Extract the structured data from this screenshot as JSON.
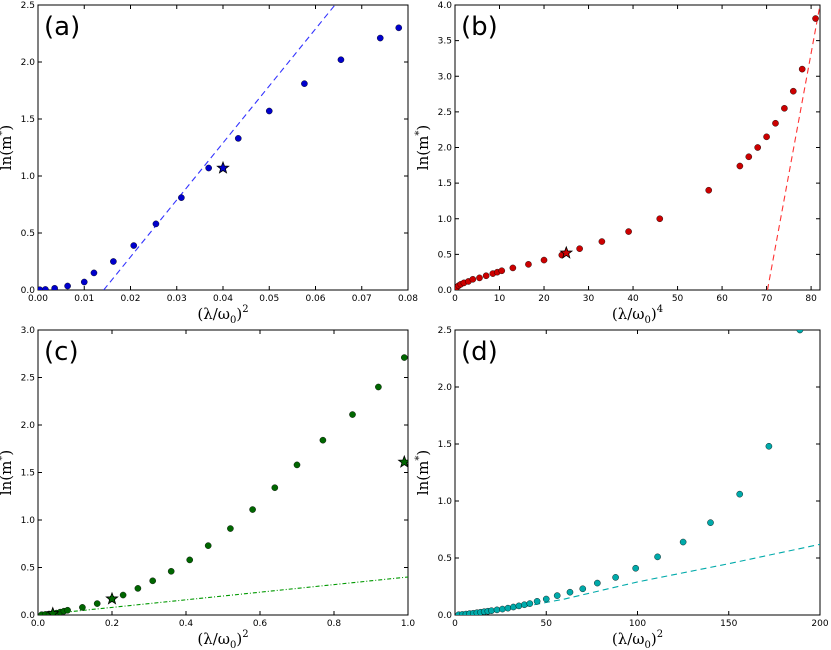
{
  "chart_data": [
    {
      "type": "scatter",
      "panel_label": "(a)",
      "xlabel": "(λ/ω0)^2",
      "ylabel": "ln(m*)",
      "xlim": [
        0,
        0.08
      ],
      "ylim": [
        0,
        2.5
      ],
      "xticks": [
        "0.00",
        "0.01",
        "0.02",
        "0.03",
        "0.04",
        "0.05",
        "0.06",
        "0.07",
        "0.08"
      ],
      "yticks": [
        "0.0",
        "0.5",
        "1.0",
        "1.5",
        "2.0",
        "2.5"
      ],
      "marker_color": "#0000cc",
      "line_color": "#3333ff",
      "series": [
        {
          "kind": "points",
          "x": [
            0.0004,
            0.0016,
            0.0036,
            0.0064,
            0.01,
            0.0121,
            0.0163,
            0.0207,
            0.0255,
            0.031,
            0.0369,
            0.0433,
            0.05,
            0.0576,
            0.0655,
            0.074,
            0.078
          ],
          "y": [
            0.002,
            0.005,
            0.015,
            0.035,
            0.07,
            0.15,
            0.25,
            0.39,
            0.58,
            0.81,
            1.07,
            1.33,
            1.57,
            1.81,
            2.02,
            2.21,
            2.3
          ]
        },
        {
          "kind": "line",
          "style": "dashed",
          "x": [
            0.0142,
            0.0642
          ],
          "y": [
            0,
            2.5
          ]
        },
        {
          "kind": "star",
          "x": [
            0.04
          ],
          "y": [
            1.07
          ]
        }
      ]
    },
    {
      "type": "scatter",
      "panel_label": "(b)",
      "xlabel": "(λ/ω0)^4",
      "ylabel": "ln(m*)",
      "xlim": [
        0,
        82
      ],
      "ylim": [
        0,
        4.0
      ],
      "xticks": [
        "0",
        "10",
        "20",
        "30",
        "40",
        "50",
        "60",
        "70",
        "80"
      ],
      "yticks": [
        "0.0",
        "0.5",
        "1.0",
        "1.5",
        "2.0",
        "2.5",
        "3.0",
        "3.5",
        "4.0"
      ],
      "marker_color": "#cc0000",
      "line_color": "#ff3333",
      "series": [
        {
          "kind": "points",
          "x": [
            0.2,
            0.4,
            0.8,
            1.3,
            2,
            3,
            4,
            5.5,
            7,
            8.5,
            9.5,
            10.5,
            13,
            16.5,
            20,
            24,
            28,
            33,
            39,
            46,
            57,
            64,
            66,
            68,
            70,
            72,
            74,
            76,
            78,
            81
          ],
          "y": [
            0.02,
            0.04,
            0.06,
            0.08,
            0.1,
            0.12,
            0.15,
            0.17,
            0.2,
            0.23,
            0.25,
            0.27,
            0.31,
            0.36,
            0.42,
            0.49,
            0.58,
            0.68,
            0.82,
            1.0,
            1.4,
            1.74,
            1.87,
            2.0,
            2.15,
            2.34,
            2.55,
            2.79,
            3.1,
            3.81
          ]
        },
        {
          "kind": "line",
          "style": "dashed",
          "x": [
            70.2,
            82
          ],
          "y": [
            0,
            4.0
          ]
        },
        {
          "kind": "star",
          "x": [
            25
          ],
          "y": [
            0.52
          ]
        }
      ]
    },
    {
      "type": "scatter",
      "panel_label": "(c)",
      "xlabel": "(λ/ω0)^2",
      "ylabel": "ln(m*)",
      "xlim": [
        0,
        1.0
      ],
      "ylim": [
        0,
        3.0
      ],
      "xticks": [
        "0.0",
        "0.2",
        "0.4",
        "0.6",
        "0.8",
        "1.0"
      ],
      "yticks": [
        "0.0",
        "0.5",
        "1.0",
        "1.5",
        "2.0",
        "2.5",
        "3.0"
      ],
      "marker_color": "#006600",
      "line_color": "#009900",
      "series": [
        {
          "kind": "points",
          "x": [
            0.01,
            0.02,
            0.03,
            0.04,
            0.05,
            0.06,
            0.07,
            0.08,
            0.12,
            0.16,
            0.2,
            0.23,
            0.27,
            0.31,
            0.36,
            0.41,
            0.46,
            0.52,
            0.58,
            0.64,
            0.7,
            0.77,
            0.85,
            0.92,
            0.99
          ],
          "y": [
            0.003,
            0.006,
            0.01,
            0.015,
            0.02,
            0.03,
            0.04,
            0.05,
            0.08,
            0.12,
            0.17,
            0.21,
            0.28,
            0.36,
            0.46,
            0.58,
            0.73,
            0.91,
            1.11,
            1.34,
            1.58,
            1.84,
            2.11,
            2.4,
            2.71
          ]
        },
        {
          "kind": "line",
          "style": "dashdot",
          "x": [
            0,
            1.0
          ],
          "y": [
            0,
            0.4
          ]
        },
        {
          "kind": "star",
          "x": [
            0.04,
            0.2,
            0.99
          ],
          "y": [
            0.015,
            0.17,
            1.61
          ]
        }
      ]
    },
    {
      "type": "scatter",
      "panel_label": "(d)",
      "xlabel": "(λ/ω0)^2",
      "ylabel": "ln(m*)",
      "xlim": [
        0,
        200
      ],
      "ylim": [
        0,
        2.5
      ],
      "xticks": [
        "0",
        "50",
        "100",
        "150",
        "200"
      ],
      "yticks": [
        "0.0",
        "0.5",
        "1.0",
        "1.5",
        "2.0",
        "2.5"
      ],
      "marker_color": "#00aaaa",
      "line_color": "#00aaaa",
      "series": [
        {
          "kind": "points",
          "x": [
            2,
            4,
            6,
            8,
            10,
            12,
            14,
            16,
            18,
            20,
            23,
            26,
            29,
            32,
            35,
            38,
            41,
            45,
            50,
            56,
            63,
            70,
            78,
            88,
            99,
            111,
            125,
            140,
            156,
            172,
            189
          ],
          "y": [
            0.002,
            0.005,
            0.008,
            0.012,
            0.015,
            0.02,
            0.024,
            0.029,
            0.033,
            0.038,
            0.045,
            0.052,
            0.06,
            0.07,
            0.08,
            0.09,
            0.1,
            0.12,
            0.14,
            0.17,
            0.2,
            0.23,
            0.28,
            0.33,
            0.41,
            0.51,
            0.64,
            0.81,
            1.06,
            1.48,
            2.5
          ]
        },
        {
          "kind": "line",
          "style": "dashed",
          "x": [
            0,
            30,
            60,
            100,
            150,
            200
          ],
          "y": [
            0,
            0.05,
            0.14,
            0.29,
            0.45,
            0.62
          ]
        }
      ]
    }
  ]
}
